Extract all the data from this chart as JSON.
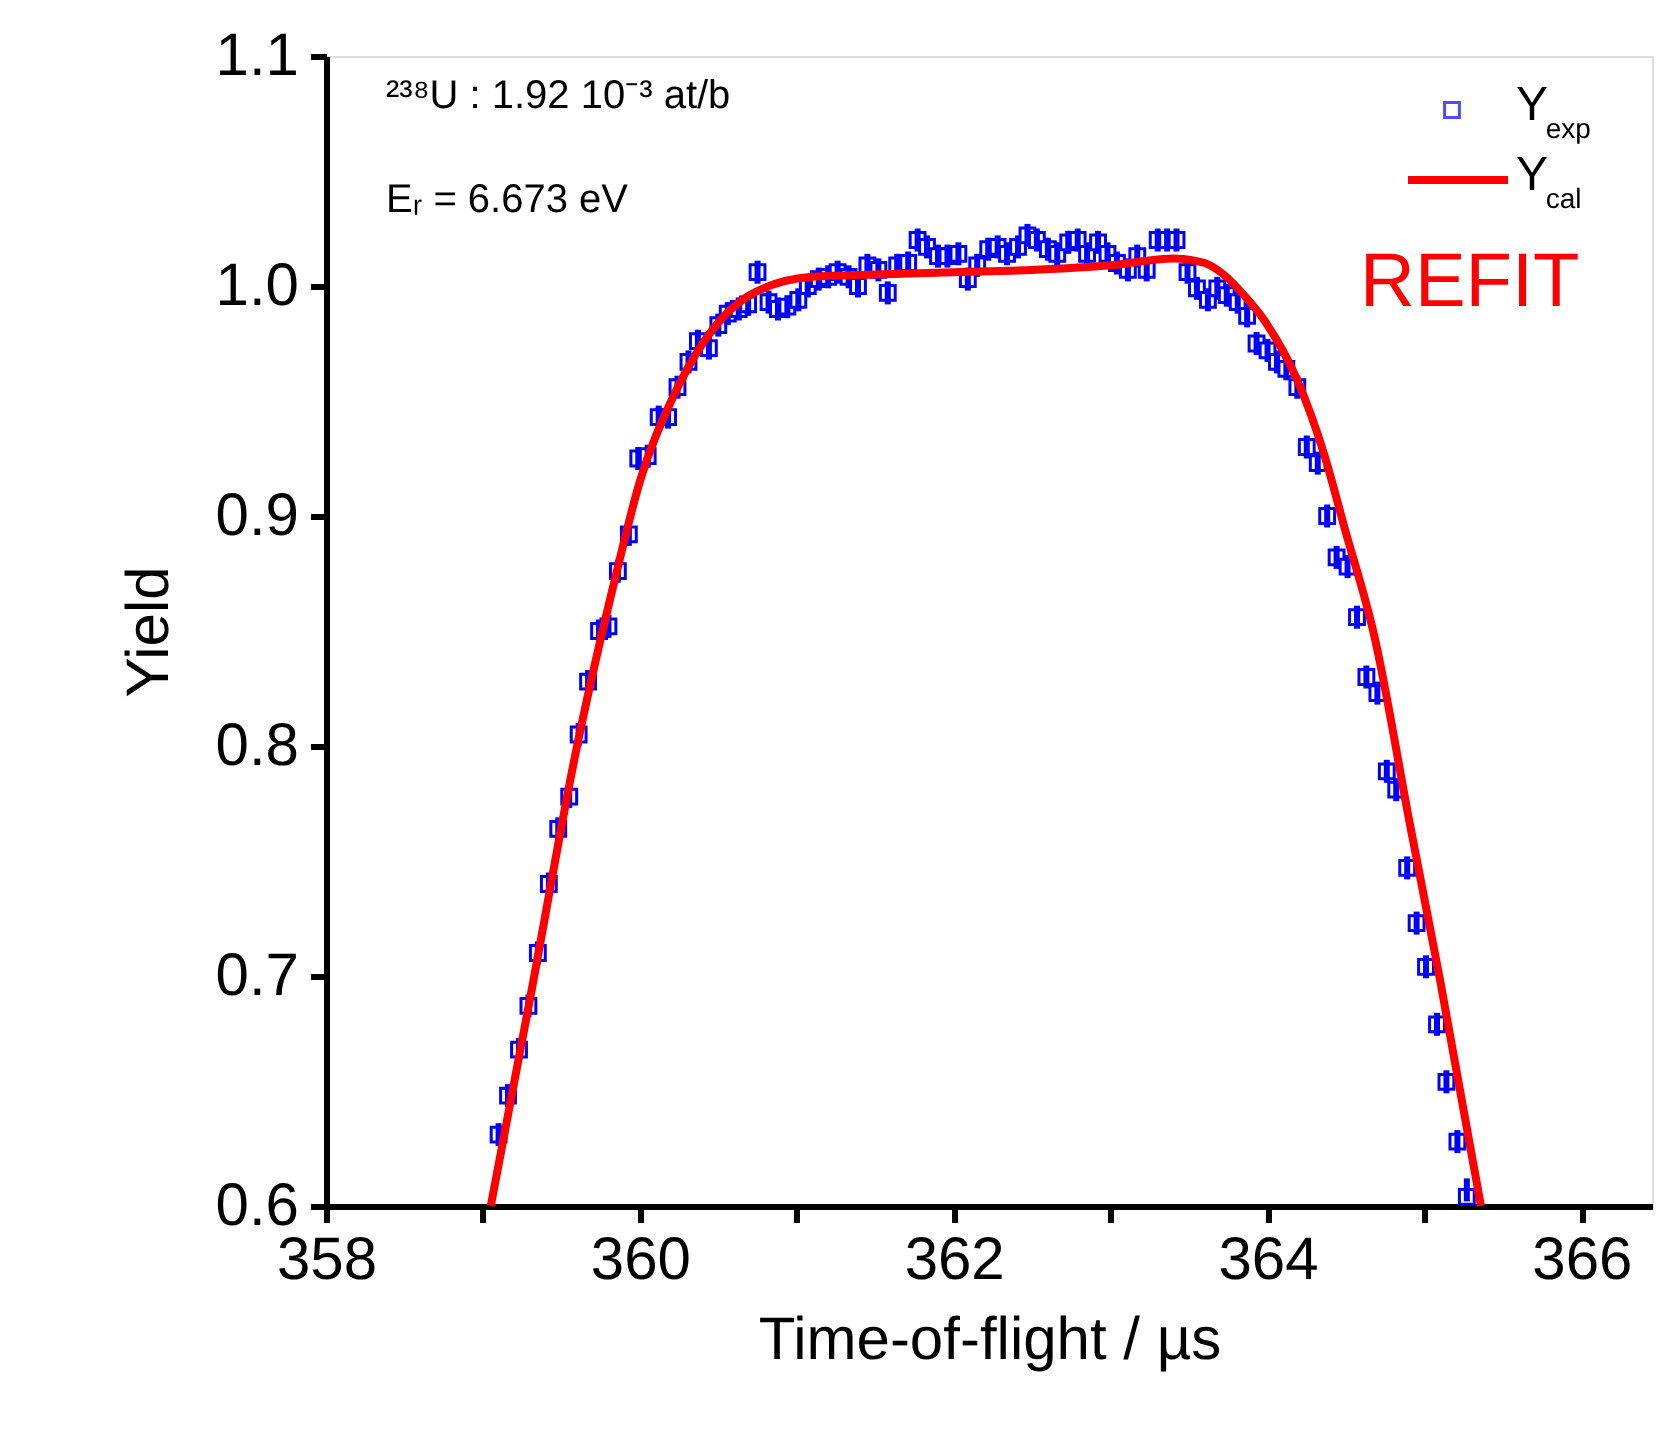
{
  "chart_data": {
    "type": "scatter",
    "xlabel": "Time-of-flight / µs",
    "ylabel": "Yield",
    "xlim": [
      358,
      366.45
    ],
    "ylim": [
      0.6,
      1.1
    ],
    "xticks": [
      358,
      {
        "value": 359,
        "label": null
      },
      360,
      {
        "value": 361,
        "label": null
      },
      362,
      {
        "value": 363,
        "label": null
      },
      364,
      {
        "value": 365,
        "label": null
      },
      366
    ],
    "yticks": [
      0.6,
      0.7,
      0.8,
      0.9,
      {
        "value": 1,
        "label": "1.0"
      },
      1.1
    ],
    "grid": false,
    "legend": "top right",
    "annotations": [
      "²³⁸U : 1.92 10⁻³ at/b",
      "Eᵣ = 6.673 eV",
      "REFIT"
    ],
    "series": [
      {
        "name": "Y$_{exp}$",
        "marker": "square",
        "color": "#0000ff",
        "x": [
          359.1,
          359.16,
          359.23,
          359.29,
          359.35,
          359.42,
          359.48,
          359.55,
          359.61,
          359.67,
          359.74,
          359.8,
          359.86,
          359.93,
          359.99,
          360.05,
          360.12,
          360.18,
          360.24,
          360.31,
          360.37,
          360.44,
          360.5,
          360.56,
          360.63,
          360.69,
          360.75,
          360.82,
          360.88,
          360.94,
          361.01,
          361.07,
          361.14,
          361.2,
          361.26,
          361.33,
          361.39,
          361.45,
          361.52,
          361.58,
          361.64,
          361.71,
          361.77,
          361.83,
          361.9,
          361.96,
          362.03,
          362.09,
          362.15,
          362.22,
          362.28,
          362.34,
          362.41,
          362.47,
          362.53,
          362.6,
          362.66,
          362.73,
          362.79,
          362.85,
          362.92,
          362.98,
          363.04,
          363.11,
          363.17,
          363.23,
          363.3,
          363.36,
          363.42,
          363.49,
          363.55,
          363.62,
          363.68,
          363.74,
          363.81,
          363.87,
          363.93,
          364.0,
          364.06,
          364.12,
          364.19,
          364.25,
          364.32,
          364.38,
          364.44,
          364.51,
          364.57,
          364.63,
          364.7,
          364.76,
          364.82,
          364.89,
          364.95,
          365.01,
          365.08,
          365.14,
          365.21,
          365.27
        ],
        "values": [
          0.631,
          0.648,
          0.668,
          0.687,
          0.71,
          0.74,
          0.764,
          0.778,
          0.805,
          0.828,
          0.85,
          0.852,
          0.876,
          0.892,
          0.925,
          0.926,
          0.943,
          0.943,
          0.956,
          0.967,
          0.976,
          0.973,
          0.983,
          0.988,
          0.99,
          0.992,
          1.006,
          0.993,
          0.99,
          0.991,
          0.994,
          1.0,
          1.003,
          1.004,
          1.006,
          1.004,
          1.0,
          1.009,
          1.007,
          0.997,
          1.009,
          1.01,
          1.02,
          1.017,
          1.013,
          1.013,
          1.014,
          1.003,
          1.009,
          1.016,
          1.017,
          1.014,
          1.017,
          1.022,
          1.02,
          1.016,
          1.014,
          1.019,
          1.02,
          1.014,
          1.019,
          1.014,
          1.01,
          1.007,
          1.013,
          1.007,
          1.02,
          1.02,
          1.02,
          1.006,
          0.999,
          0.994,
          0.999,
          0.996,
          0.993,
          0.987,
          0.975,
          0.972,
          0.967,
          0.964,
          0.956,
          0.93,
          0.923,
          0.9,
          0.882,
          0.878,
          0.856,
          0.83,
          0.823,
          0.789,
          0.781,
          0.747,
          0.723,
          0.704,
          0.679,
          0.654,
          0.628,
          0.604
        ],
        "errors": [
          0.005,
          0.005,
          0.005,
          0.005,
          0.005,
          0.005,
          0.005,
          0.005,
          0.005,
          0.005,
          0.005,
          0.005,
          0.005,
          0.005,
          0.005,
          0.005,
          0.005,
          0.005,
          0.005,
          0.005,
          0.005,
          0.005,
          0.005,
          0.005,
          0.005,
          0.005,
          0.005,
          0.005,
          0.005,
          0.005,
          0.005,
          0.005,
          0.005,
          0.005,
          0.005,
          0.005,
          0.005,
          0.005,
          0.005,
          0.005,
          0.005,
          0.005,
          0.005,
          0.005,
          0.005,
          0.005,
          0.005,
          0.005,
          0.005,
          0.005,
          0.005,
          0.005,
          0.005,
          0.005,
          0.005,
          0.005,
          0.005,
          0.005,
          0.005,
          0.005,
          0.005,
          0.005,
          0.005,
          0.005,
          0.005,
          0.005,
          0.005,
          0.005,
          0.005,
          0.005,
          0.005,
          0.005,
          0.005,
          0.005,
          0.005,
          0.005,
          0.005,
          0.005,
          0.005,
          0.005,
          0.005,
          0.005,
          0.005,
          0.005,
          0.005,
          0.005,
          0.005,
          0.005,
          0.005,
          0.005,
          0.005,
          0.005,
          0.005,
          0.005,
          0.005,
          0.005,
          0.005,
          [
            0.602,
            0.612
          ]
        ]
      },
      {
        "name": "Y$_{cal}$",
        "type": "line",
        "line_style": "solid",
        "color": "#ff0000",
        "x": [
          359.05,
          359.3,
          359.6,
          359.85,
          360.0,
          360.2,
          360.4,
          360.7,
          361.1,
          361.5,
          362.0,
          362.5,
          363.0,
          363.4,
          363.6,
          363.72,
          363.85,
          363.98,
          364.19,
          364.36,
          364.49,
          364.68,
          364.91,
          365.1,
          365.36
        ],
        "values": [
          0.6,
          0.69,
          0.8,
          0.875,
          0.915,
          0.95,
          0.975,
          0.996,
          1.004,
          1.005,
          1.006,
          1.007,
          1.009,
          1.012,
          1.01,
          1.005,
          0.996,
          0.985,
          0.959,
          0.927,
          0.895,
          0.848,
          0.765,
          0.698,
          0.6
        ]
      }
    ]
  }
}
